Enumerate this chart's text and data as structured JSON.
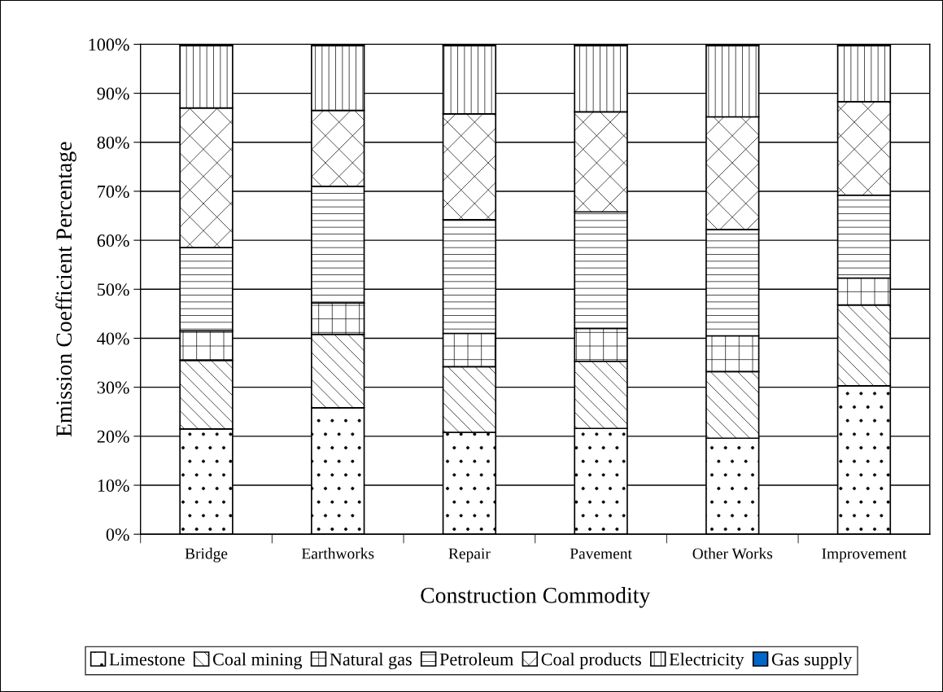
{
  "chart_data": {
    "type": "bar",
    "stacked": true,
    "xlabel": "Construction Commodity",
    "ylabel": "Emission Coefficient Percentage",
    "categories": [
      "Bridge",
      "Earthworks",
      "Repair",
      "Pavement",
      "Other Works",
      "Improvement"
    ],
    "series": [
      {
        "name": "Limestone",
        "color": "#000000",
        "values": [
          21.5,
          25.8,
          20.8,
          21.6,
          19.6,
          30.3
        ]
      },
      {
        "name": "Coal mining",
        "color": "#000000",
        "values": [
          14.0,
          15.0,
          13.4,
          13.7,
          13.6,
          16.5
        ]
      },
      {
        "name": "Natural gas",
        "color": "#000000",
        "values": [
          6.0,
          6.4,
          6.8,
          6.7,
          7.3,
          5.5
        ]
      },
      {
        "name": "Petroleum",
        "color": "#000000",
        "values": [
          17.0,
          23.8,
          23.2,
          23.8,
          21.7,
          16.9
        ]
      },
      {
        "name": "Coal products",
        "color": "#000000",
        "values": [
          28.5,
          15.5,
          21.6,
          20.4,
          23.0,
          19.1
        ]
      },
      {
        "name": "Electricity",
        "color": "#000000",
        "values": [
          12.7,
          13.2,
          13.9,
          13.5,
          14.5,
          11.4
        ]
      },
      {
        "name": "Gas supply",
        "color": "#0066cc",
        "values": [
          0.3,
          0.3,
          0.3,
          0.3,
          0.3,
          0.3
        ]
      }
    ],
    "ylim": [
      0,
      100
    ],
    "yticks": [
      {
        "value": 0,
        "label": "0%"
      },
      {
        "value": 10,
        "label": "10%"
      },
      {
        "value": 20,
        "label": "20%"
      },
      {
        "value": 30,
        "label": "30%"
      },
      {
        "value": 40,
        "label": "40%"
      },
      {
        "value": 50,
        "label": "50%"
      },
      {
        "value": 60,
        "label": "60%"
      },
      {
        "value": 70,
        "label": "70%"
      },
      {
        "value": 80,
        "label": "80%"
      },
      {
        "value": 90,
        "label": "90%"
      },
      {
        "value": 100,
        "label": "100%"
      }
    ],
    "grid": "y",
    "legend": "bottom"
  }
}
